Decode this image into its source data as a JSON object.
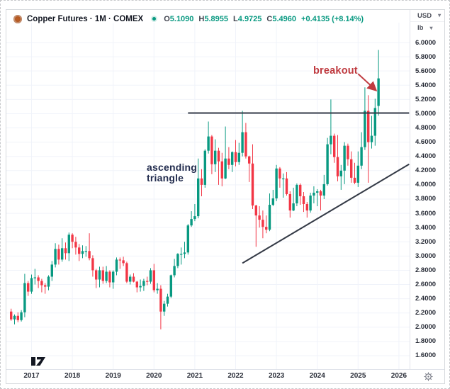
{
  "header": {
    "symbol_title": "Copper Futures · 1M · COMEX",
    "ohlc": {
      "o_label": "O",
      "o_value": "5.1090",
      "h_label": "H",
      "h_value": "5.8955",
      "l_label": "L",
      "l_value": "4.9725",
      "c_label": "C",
      "c_value": "5.4960",
      "change": "+0.4135 (+8.14%)"
    },
    "currency": "USD",
    "unit": "lb"
  },
  "annotations": {
    "breakout": "breakout",
    "triangle_line1": "ascending",
    "triangle_line2": "triangle"
  },
  "axis": {
    "years": [
      "2017",
      "2018",
      "2019",
      "2020",
      "2021",
      "2022",
      "2023",
      "2024",
      "2025",
      "2026"
    ],
    "price_ticks": [
      "6.0000",
      "5.8000",
      "5.6000",
      "5.4000",
      "5.2000",
      "5.0000",
      "4.8000",
      "4.6000",
      "4.4000",
      "4.2000",
      "4.0000",
      "3.8000",
      "3.6000",
      "3.4000",
      "3.2000",
      "3.0000",
      "2.8000",
      "2.6000",
      "2.4000",
      "2.2000",
      "2.0000",
      "1.8000",
      "1.6000"
    ]
  },
  "colors": {
    "up": "#089981",
    "down": "#f23645",
    "grid": "#f0f3fa",
    "trendline": "#343a46",
    "annotation_red": "#bf3a3f",
    "annotation_navy": "#222c4e",
    "axis_text": "#2a2e39",
    "value_text": "#089981"
  },
  "chart_data": {
    "type": "candlestick",
    "title": "Copper Futures, 1 month, COMEX",
    "y_unit": "USD/lb",
    "y_range": [
      1.6,
      6.0
    ],
    "grid": true,
    "candles": [
      [
        "2016-07",
        2.22,
        2.26,
        2.09,
        2.11
      ],
      [
        "2016-08",
        2.11,
        2.18,
        2.04,
        2.16
      ],
      [
        "2016-09",
        2.16,
        2.21,
        2.07,
        2.1
      ],
      [
        "2016-10",
        2.1,
        2.24,
        2.08,
        2.21
      ],
      [
        "2016-11",
        2.21,
        2.75,
        2.14,
        2.62
      ],
      [
        "2016-12",
        2.62,
        2.65,
        2.44,
        2.5
      ],
      [
        "2017-01",
        2.5,
        2.74,
        2.47,
        2.69
      ],
      [
        "2017-02",
        2.69,
        2.82,
        2.6,
        2.7
      ],
      [
        "2017-03",
        2.7,
        2.73,
        2.55,
        2.65
      ],
      [
        "2017-04",
        2.65,
        2.68,
        2.49,
        2.59
      ],
      [
        "2017-05",
        2.59,
        2.62,
        2.47,
        2.57
      ],
      [
        "2017-06",
        2.57,
        2.73,
        2.52,
        2.71
      ],
      [
        "2017-07",
        2.71,
        2.93,
        2.65,
        2.88
      ],
      [
        "2017-08",
        2.88,
        3.18,
        2.84,
        3.1
      ],
      [
        "2017-09",
        3.1,
        3.16,
        2.88,
        2.95
      ],
      [
        "2017-10",
        2.95,
        3.25,
        2.92,
        3.11
      ],
      [
        "2017-11",
        3.11,
        3.19,
        2.95,
        3.04
      ],
      [
        "2017-12",
        3.04,
        3.33,
        2.93,
        3.3
      ],
      [
        "2018-01",
        3.3,
        3.32,
        3.11,
        3.2
      ],
      [
        "2018-02",
        3.2,
        3.27,
        3.02,
        3.12
      ],
      [
        "2018-03",
        3.12,
        3.17,
        2.93,
        3.03
      ],
      [
        "2018-04",
        3.03,
        3.15,
        2.97,
        3.07
      ],
      [
        "2018-05",
        3.07,
        3.14,
        2.99,
        3.07
      ],
      [
        "2018-06",
        3.07,
        3.32,
        2.94,
        2.97
      ],
      [
        "2018-07",
        2.97,
        3.01,
        2.71,
        2.8
      ],
      [
        "2018-08",
        2.8,
        2.82,
        2.55,
        2.67
      ],
      [
        "2018-09",
        2.67,
        2.85,
        2.56,
        2.8
      ],
      [
        "2018-10",
        2.8,
        2.85,
        2.61,
        2.65
      ],
      [
        "2018-11",
        2.65,
        2.86,
        2.62,
        2.78
      ],
      [
        "2018-12",
        2.78,
        2.8,
        2.56,
        2.63
      ],
      [
        "2019-01",
        2.63,
        2.8,
        2.54,
        2.78
      ],
      [
        "2019-02",
        2.78,
        2.98,
        2.73,
        2.95
      ],
      [
        "2019-03",
        2.95,
        2.98,
        2.82,
        2.94
      ],
      [
        "2019-04",
        2.94,
        2.99,
        2.86,
        2.9
      ],
      [
        "2019-05",
        2.9,
        2.92,
        2.62,
        2.64
      ],
      [
        "2019-06",
        2.64,
        2.74,
        2.6,
        2.71
      ],
      [
        "2019-07",
        2.71,
        2.76,
        2.63,
        2.64
      ],
      [
        "2019-08",
        2.64,
        2.65,
        2.49,
        2.56
      ],
      [
        "2019-09",
        2.56,
        2.67,
        2.5,
        2.58
      ],
      [
        "2019-10",
        2.58,
        2.68,
        2.51,
        2.65
      ],
      [
        "2019-11",
        2.65,
        2.71,
        2.59,
        2.64
      ],
      [
        "2019-12",
        2.64,
        2.83,
        2.61,
        2.8
      ],
      [
        "2020-01",
        2.8,
        2.89,
        2.49,
        2.52
      ],
      [
        "2020-02",
        2.52,
        2.62,
        2.47,
        2.54
      ],
      [
        "2020-03",
        2.54,
        2.59,
        1.97,
        2.22
      ],
      [
        "2020-04",
        2.22,
        2.37,
        2.16,
        2.33
      ],
      [
        "2020-05",
        2.33,
        2.47,
        2.29,
        2.43
      ],
      [
        "2020-06",
        2.43,
        2.74,
        2.41,
        2.73
      ],
      [
        "2020-07",
        2.73,
        2.96,
        2.7,
        2.86
      ],
      [
        "2020-08",
        2.86,
        3.04,
        2.83,
        3.03
      ],
      [
        "2020-09",
        3.03,
        3.12,
        2.88,
        3.03
      ],
      [
        "2020-10",
        3.03,
        3.2,
        2.97,
        3.05
      ],
      [
        "2020-11",
        3.05,
        3.45,
        3.02,
        3.43
      ],
      [
        "2020-12",
        3.43,
        3.63,
        3.41,
        3.52
      ],
      [
        "2021-01",
        3.52,
        3.73,
        3.49,
        3.56
      ],
      [
        "2021-02",
        3.56,
        4.37,
        3.53,
        4.09
      ],
      [
        "2021-03",
        4.09,
        4.22,
        3.84,
        4.0
      ],
      [
        "2021-04",
        4.0,
        4.5,
        3.96,
        4.48
      ],
      [
        "2021-05",
        4.48,
        4.89,
        4.44,
        4.68
      ],
      [
        "2021-06",
        4.68,
        4.7,
        4.15,
        4.29
      ],
      [
        "2021-07",
        4.29,
        4.64,
        4.18,
        4.48
      ],
      [
        "2021-08",
        4.48,
        4.52,
        4.0,
        4.33
      ],
      [
        "2021-09",
        4.33,
        4.45,
        3.98,
        4.09
      ],
      [
        "2021-10",
        4.09,
        4.82,
        4.08,
        4.37
      ],
      [
        "2021-11",
        4.37,
        4.53,
        4.22,
        4.28
      ],
      [
        "2021-12",
        4.28,
        4.47,
        4.18,
        4.46
      ],
      [
        "2022-01",
        4.46,
        4.63,
        4.26,
        4.32
      ],
      [
        "2022-02",
        4.32,
        4.59,
        4.28,
        4.45
      ],
      [
        "2022-03",
        4.45,
        5.04,
        4.4,
        4.74
      ],
      [
        "2022-04",
        4.74,
        4.87,
        4.37,
        4.4
      ],
      [
        "2022-05",
        4.4,
        4.41,
        4.04,
        4.3
      ],
      [
        "2022-06",
        4.3,
        4.57,
        3.66,
        3.71
      ],
      [
        "2022-07",
        3.71,
        3.72,
        3.13,
        3.57
      ],
      [
        "2022-08",
        3.57,
        3.7,
        3.4,
        3.51
      ],
      [
        "2022-09",
        3.51,
        3.64,
        3.25,
        3.41
      ],
      [
        "2022-10",
        3.41,
        3.57,
        3.32,
        3.37
      ],
      [
        "2022-11",
        3.37,
        3.88,
        3.35,
        3.72
      ],
      [
        "2022-12",
        3.72,
        3.93,
        3.7,
        3.81
      ],
      [
        "2023-01",
        3.81,
        4.28,
        3.77,
        4.23
      ],
      [
        "2023-02",
        4.23,
        4.25,
        3.96,
        4.09
      ],
      [
        "2023-03",
        4.09,
        4.16,
        3.82,
        4.09
      ],
      [
        "2023-04",
        4.09,
        4.18,
        3.85,
        3.87
      ],
      [
        "2023-05",
        3.87,
        3.91,
        3.54,
        3.64
      ],
      [
        "2023-06",
        3.64,
        3.96,
        3.63,
        3.74
      ],
      [
        "2023-07",
        3.74,
        4.02,
        3.7,
        4.0
      ],
      [
        "2023-08",
        4.0,
        4.02,
        3.72,
        3.84
      ],
      [
        "2023-09",
        3.84,
        3.9,
        3.62,
        3.73
      ],
      [
        "2023-10",
        3.73,
        3.76,
        3.54,
        3.64
      ],
      [
        "2023-11",
        3.64,
        3.89,
        3.61,
        3.85
      ],
      [
        "2023-12",
        3.85,
        3.98,
        3.74,
        3.89
      ],
      [
        "2024-01",
        3.89,
        3.94,
        3.7,
        3.91
      ],
      [
        "2024-02",
        3.91,
        3.93,
        3.64,
        3.85
      ],
      [
        "2024-03",
        3.85,
        4.14,
        3.8,
        4.01
      ],
      [
        "2024-04",
        4.01,
        4.66,
        3.99,
        4.57
      ],
      [
        "2024-05",
        4.57,
        5.2,
        4.43,
        4.69
      ],
      [
        "2024-06",
        4.69,
        4.72,
        4.31,
        4.39
      ],
      [
        "2024-07",
        4.39,
        4.7,
        4.05,
        4.12
      ],
      [
        "2024-08",
        4.12,
        4.28,
        3.93,
        4.2
      ],
      [
        "2024-09",
        4.2,
        4.6,
        4.01,
        4.55
      ],
      [
        "2024-10",
        4.55,
        4.58,
        4.27,
        4.36
      ],
      [
        "2024-11",
        4.36,
        4.47,
        4.03,
        4.1
      ],
      [
        "2024-12",
        4.1,
        4.31,
        4.01,
        4.03
      ],
      [
        "2025-01",
        4.03,
        4.47,
        3.97,
        4.27
      ],
      [
        "2025-02",
        4.27,
        4.74,
        4.22,
        4.53
      ],
      [
        "2025-03",
        4.53,
        5.37,
        4.49,
        5.04
      ],
      [
        "2025-04",
        5.04,
        5.26,
        4.03,
        4.6
      ],
      [
        "2025-05",
        4.6,
        4.97,
        4.51,
        4.69
      ],
      [
        "2025-06",
        4.69,
        5.21,
        4.55,
        5.08
      ],
      [
        "2025-07",
        5.109,
        5.8955,
        4.9725,
        5.496
      ]
    ],
    "overlays": [
      {
        "name": "horizontal-resistance-line",
        "from": {
          "t": "2020-11",
          "p": 5.01
        },
        "to": {
          "t": "2026-04",
          "p": 5.01
        }
      },
      {
        "name": "ascending-support-trendline",
        "from": {
          "t": "2022-03",
          "p": 2.9
        },
        "to": {
          "t": "2026-04",
          "p": 4.29
        }
      }
    ],
    "arrow": {
      "name": "breakout-arrow",
      "from": {
        "t": "2025-01",
        "p": 5.56
      },
      "to": {
        "t": "2025-06",
        "p": 5.34
      }
    }
  }
}
